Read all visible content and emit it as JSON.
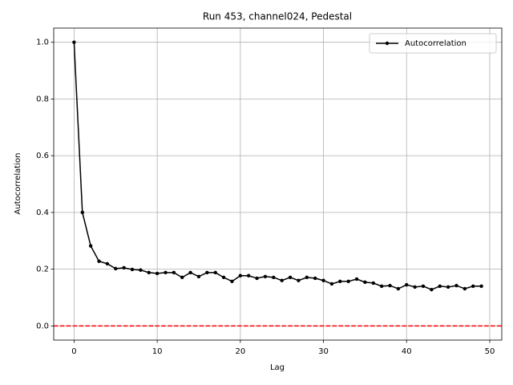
{
  "chart_data": {
    "type": "line",
    "title": "Run 453, channel024, Pedestal",
    "x_label": "Lag",
    "y_label": "Autocorrelation",
    "x": [
      0,
      1,
      2,
      3,
      4,
      5,
      6,
      7,
      8,
      9,
      10,
      11,
      12,
      13,
      14,
      15,
      16,
      17,
      18,
      19,
      20,
      21,
      22,
      23,
      24,
      25,
      26,
      27,
      28,
      29,
      30,
      31,
      32,
      33,
      34,
      35,
      36,
      37,
      38,
      39,
      40,
      41,
      42,
      43,
      44,
      45,
      46,
      47,
      48,
      49
    ],
    "series": [
      {
        "name": "Autocorrelation",
        "color": "#000000",
        "values": [
          1.0,
          0.4,
          0.282,
          0.228,
          0.219,
          0.202,
          0.205,
          0.199,
          0.197,
          0.188,
          0.185,
          0.188,
          0.188,
          0.171,
          0.188,
          0.174,
          0.188,
          0.188,
          0.171,
          0.157,
          0.177,
          0.177,
          0.168,
          0.174,
          0.171,
          0.16,
          0.171,
          0.16,
          0.171,
          0.168,
          0.16,
          0.148,
          0.157,
          0.157,
          0.165,
          0.154,
          0.151,
          0.14,
          0.142,
          0.131,
          0.145,
          0.137,
          0.14,
          0.128,
          0.14,
          0.137,
          0.142,
          0.131,
          0.14,
          0.14
        ]
      }
    ],
    "hlines": [
      {
        "value": 0,
        "color": "#ff0000",
        "style": "dashed"
      }
    ],
    "xlim": [
      -2.45,
      51.45
    ],
    "ylim": [
      -0.05,
      1.05
    ],
    "xticks": [
      0,
      10,
      20,
      30,
      40,
      50
    ],
    "yticks": [
      {
        "value": 0,
        "label": "0.0"
      },
      0.2,
      0.4,
      0.6,
      0.8,
      {
        "value": 1,
        "label": "1.0"
      }
    ],
    "grid": true,
    "legend": "upper right"
  }
}
